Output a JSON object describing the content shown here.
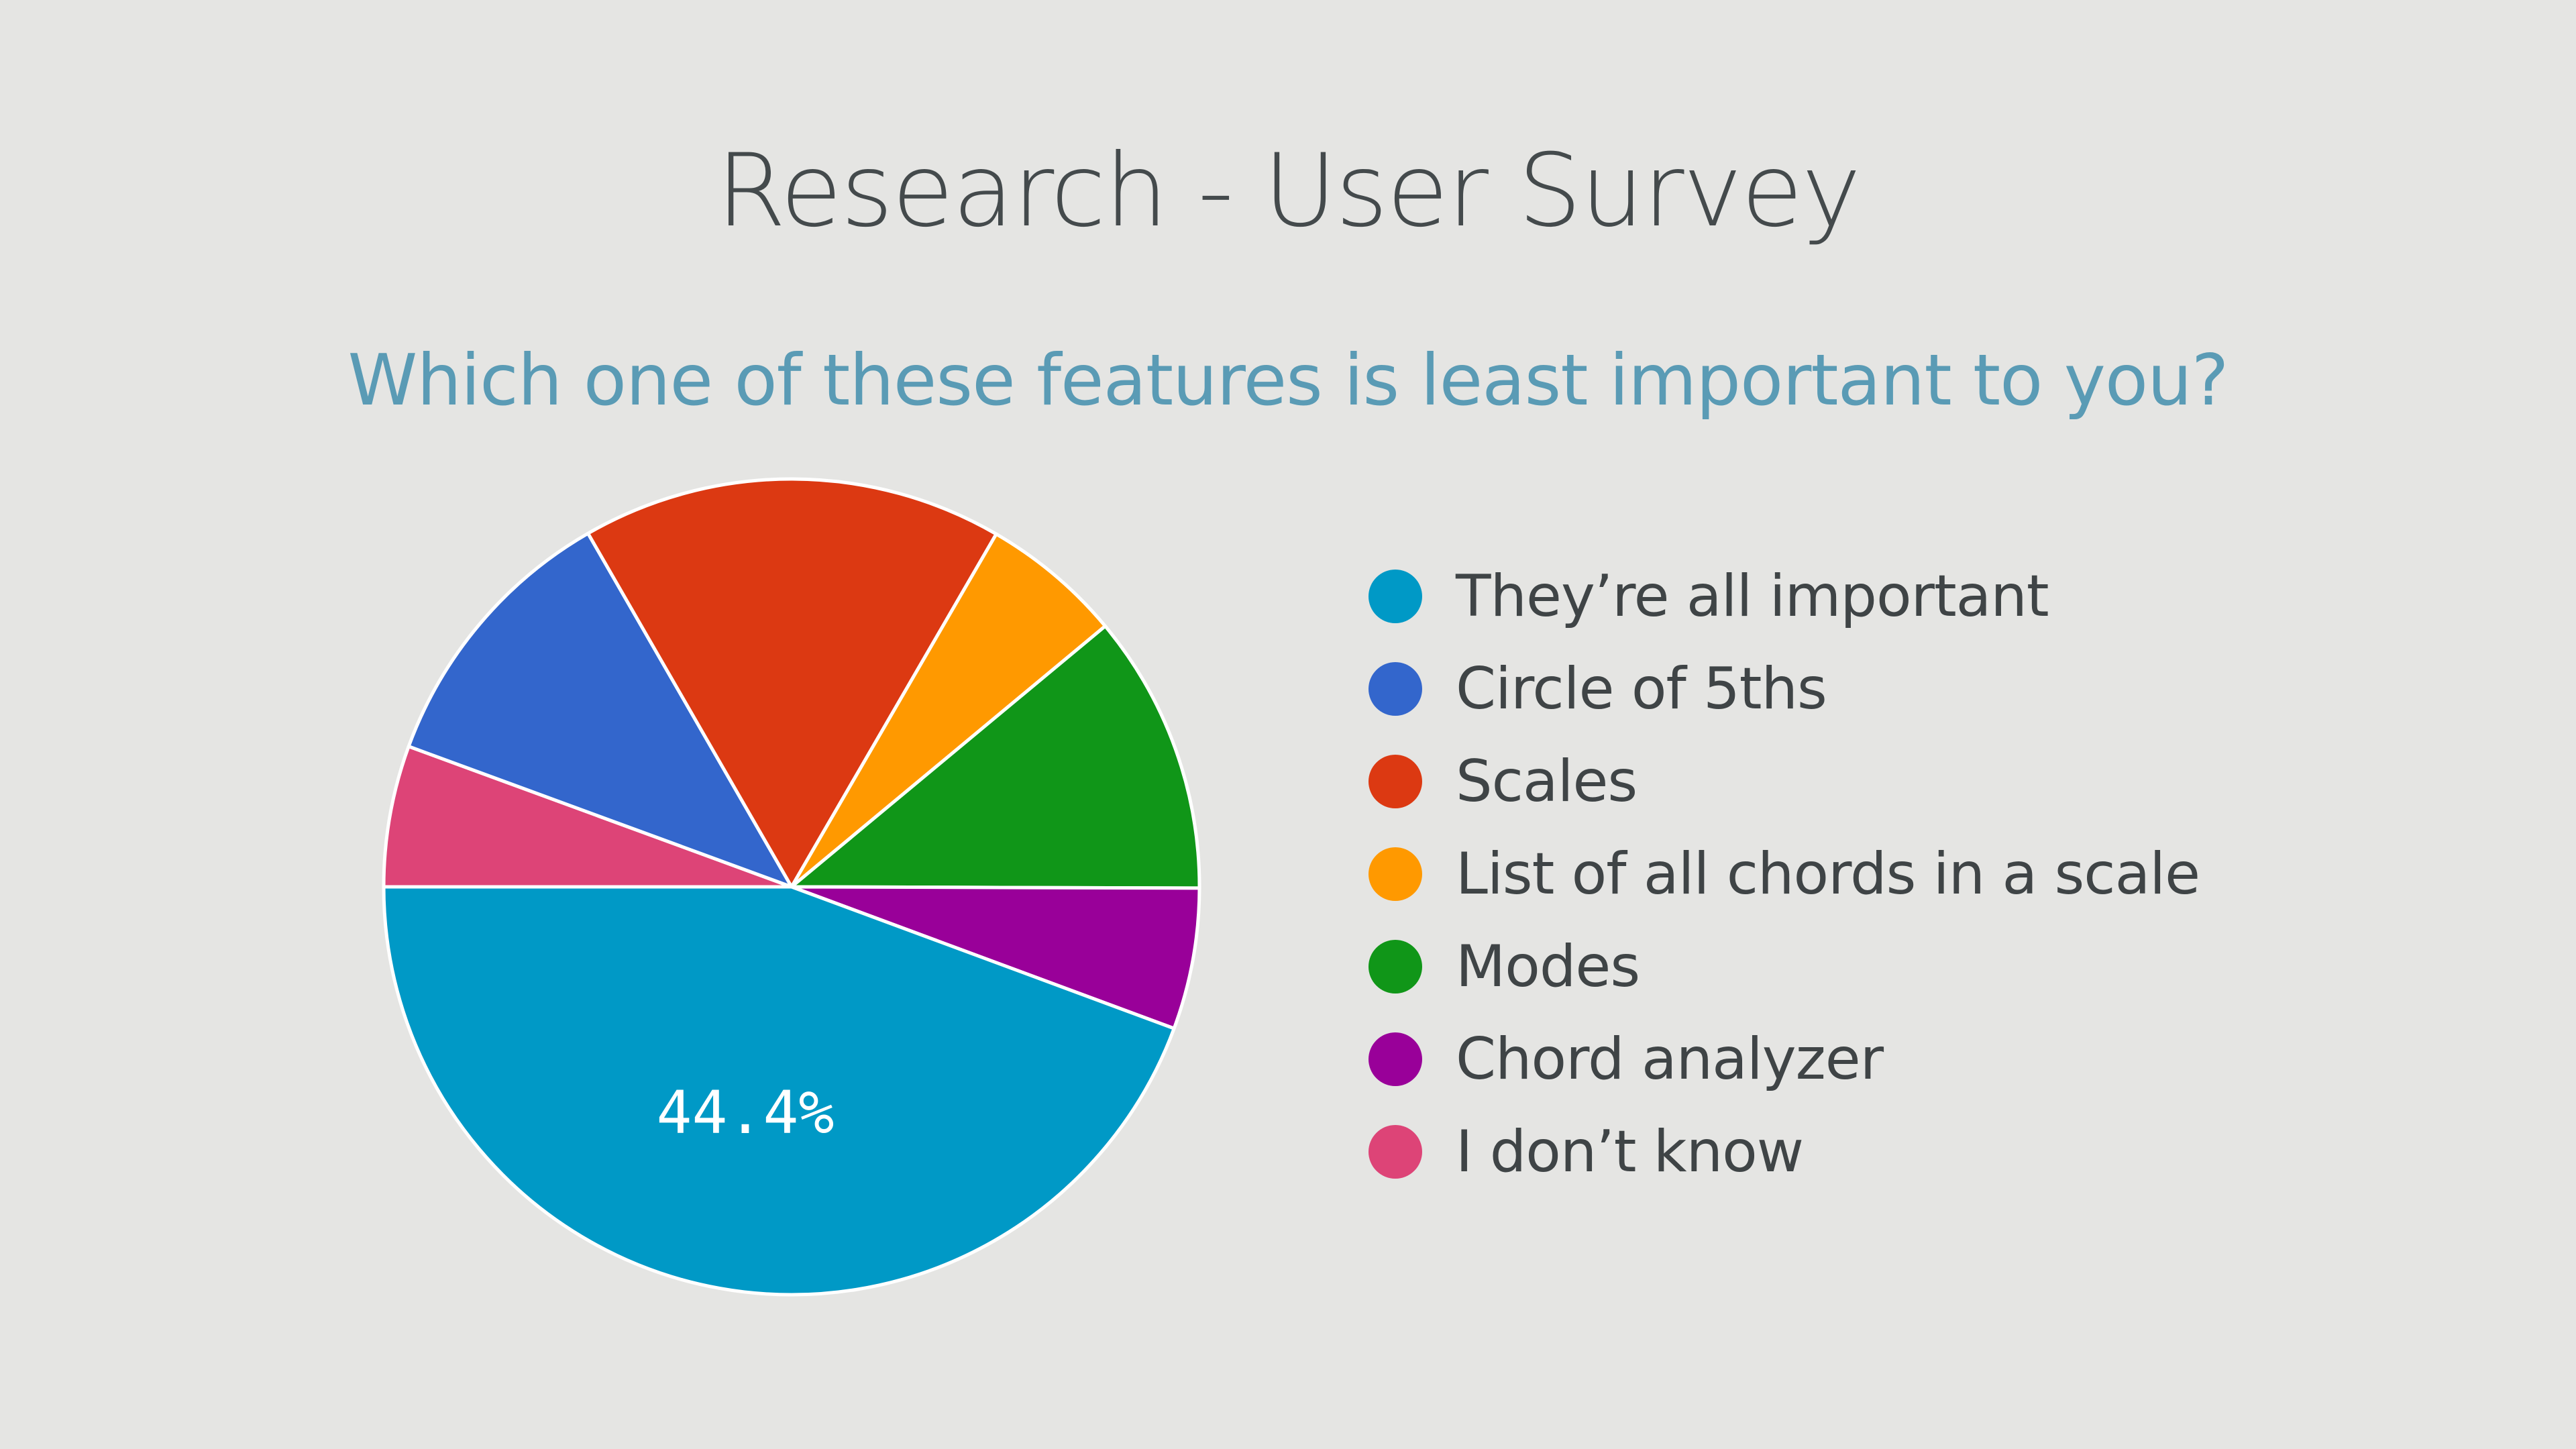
{
  "slide": {
    "title": "Research - User Survey"
  },
  "chart_data": {
    "type": "pie",
    "title": "Which one of these features is least important to you?",
    "categories": [
      "They’re all important",
      "Circle of 5ths",
      "Scales",
      "List of all chords in a scale",
      "Modes",
      "Chord analyzer",
      "I don’t know"
    ],
    "values": [
      44.4,
      11.1,
      16.7,
      5.6,
      11.1,
      5.6,
      5.6
    ],
    "colors": [
      "#0099c6",
      "#3366cc",
      "#dc3912",
      "#ff9900",
      "#109618",
      "#990099",
      "#dd4477"
    ],
    "data_labels": [
      "44.4%",
      "",
      "",
      "",
      "",
      "",
      ""
    ],
    "legend_position": "right",
    "slice_order": [
      6,
      1,
      2,
      3,
      4,
      5,
      0
    ]
  }
}
